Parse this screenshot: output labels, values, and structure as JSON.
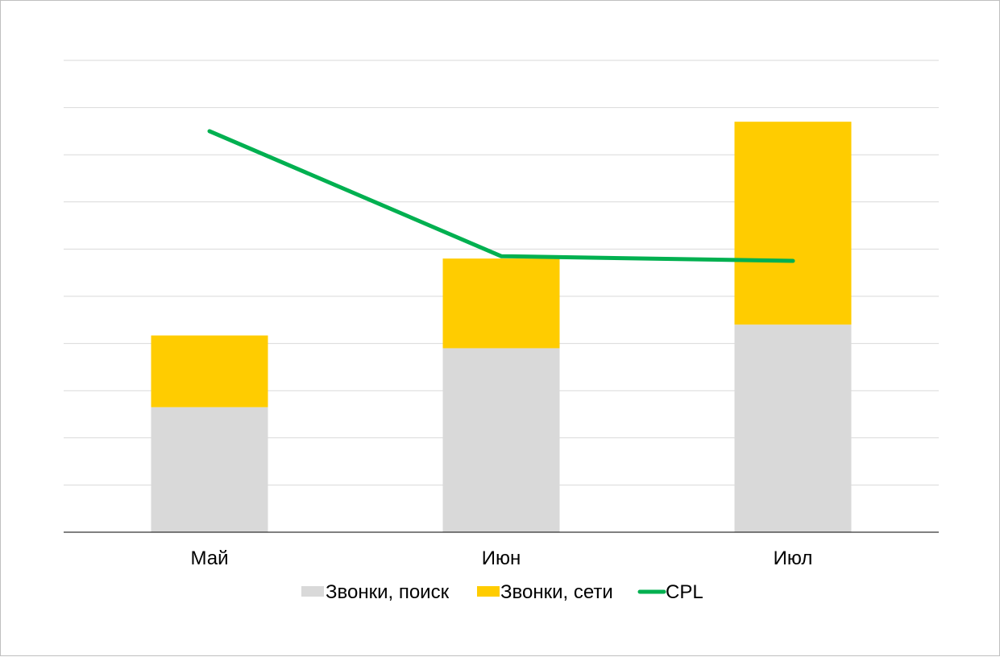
{
  "chart_data": {
    "type": "bar",
    "stacked": true,
    "categories": [
      "Май",
      "Июн",
      "Июл"
    ],
    "series": [
      {
        "name": "Звонки, поиск",
        "kind": "bar",
        "color": "#d9d9d9",
        "values": [
          2.65,
          3.9,
          4.4
        ]
      },
      {
        "name": "Звонки, сети",
        "kind": "bar",
        "color": "#ffcc00",
        "values": [
          1.52,
          1.9,
          4.3
        ]
      },
      {
        "name": "CPL",
        "kind": "line",
        "color": "#00b050",
        "values": [
          8.5,
          5.85,
          5.75
        ]
      }
    ],
    "ylim": [
      0,
      10
    ],
    "grid": true,
    "legend": "bottom",
    "y_tick_labels_shown": false
  }
}
